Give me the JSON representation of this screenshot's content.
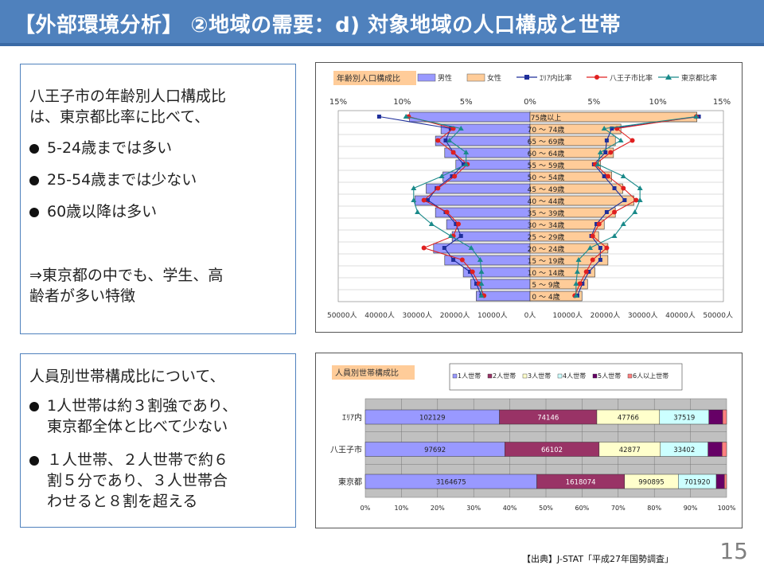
{
  "title": "【外部環境分析】 ②地域の需要：d) 対象地域の人口構成と世帯",
  "box1": {
    "lead1": "八王子市の年齢別人口構成比",
    "lead2": "は、東京都比率に比べて、",
    "bullets": [
      "5-24歳までは多い",
      "25-54歳までは少ない",
      "60歳以降は多い"
    ],
    "conclusion1": "⇒東京都の中でも、学生、高",
    "conclusion2": "齢者が多い特徴"
  },
  "box2": {
    "lead": "人員別世帯構成比について、",
    "bullet1_line1": "1人世帯は約３割強であり、",
    "bullet1_line2": "東京都全体と比べて少ない",
    "bullet2_line1": "１人世帯、２人世帯で約６",
    "bullet2_line2": "割５分であり、３人世帯合",
    "bullet2_line3": "わせると８割を超える"
  },
  "page_number": "15",
  "source": "【出典】J-STAT「平成27年国勢調査」",
  "chart_data": [
    {
      "type": "bar",
      "title": "年齢別人口構成比",
      "legend": [
        "男性",
        "女性",
        "ｴﾘｱ内比率",
        "八王子市比率",
        "東京都比率"
      ],
      "top_axis_ticks": [
        "15%",
        "10%",
        "5%",
        "0%",
        "5%",
        "10%",
        "15%"
      ],
      "bottom_axis_ticks": [
        "50000人",
        "40000人",
        "30000人",
        "20000人",
        "10000人",
        "0人",
        "10000人",
        "20000人",
        "30000人",
        "40000人",
        "50000人"
      ],
      "categories": [
        "75歳以上",
        "70 ～ 74歳",
        "65 ～ 69歳",
        "60 ～ 64歳",
        "55 ～ 59歳",
        "50 ～ 54歳",
        "45 ～ 49歳",
        "40 ～ 44歳",
        "35 ～ 39歳",
        "30 ～ 34歳",
        "25 ～ 29歳",
        "20 ～ 24歳",
        "15 ～ 19歳",
        "10 ～ 14歳",
        "5 ～ 9歳",
        "0 ～ 4歳"
      ],
      "male": [
        32500,
        24000,
        25500,
        23000,
        20000,
        23500,
        28000,
        31000,
        25500,
        22500,
        21000,
        26000,
        23000,
        18000,
        16000,
        14500
      ],
      "female": [
        45000,
        24500,
        23000,
        22500,
        19000,
        22000,
        25000,
        28000,
        23000,
        20000,
        18500,
        21000,
        21000,
        17500,
        15500,
        14000
      ],
      "series": [
        {
          "name": "ｴﾘｱ内比率",
          "color": "#1f2f9a",
          "male": [
            11.8,
            6.2,
            6.6,
            6.0,
            5.2,
            6.1,
            7.3,
            8.0,
            6.6,
            5.8,
            5.4,
            6.7,
            6.0,
            4.7,
            4.2,
            3.8
          ],
          "female": [
            13.2,
            6.4,
            6.0,
            5.9,
            5.0,
            5.8,
            6.6,
            7.4,
            6.0,
            5.2,
            4.8,
            5.5,
            5.5,
            4.6,
            4.1,
            3.7
          ]
        },
        {
          "name": "八王子市比率",
          "color": "#e02020",
          "male": [
            9.5,
            6.0,
            7.2,
            6.0,
            4.9,
            5.9,
            7.2,
            8.3,
            6.5,
            5.6,
            6.0,
            8.3,
            5.3,
            4.5,
            4.0,
            3.6
          ],
          "female": [
            13.0,
            6.8,
            8.0,
            6.3,
            5.1,
            6.1,
            7.3,
            8.3,
            6.6,
            5.4,
            4.9,
            6.0,
            4.9,
            4.4,
            3.9,
            3.5
          ]
        },
        {
          "name": "東京都比率",
          "color": "#1a8a8a",
          "male": [
            9.7,
            5.4,
            6.3,
            5.0,
            5.0,
            6.9,
            9.1,
            9.1,
            8.8,
            7.7,
            6.2,
            4.6,
            3.9,
            3.8,
            3.8,
            3.8
          ],
          "female": [
            13.0,
            5.8,
            7.1,
            5.5,
            5.3,
            7.3,
            8.6,
            8.6,
            8.2,
            7.3,
            6.6,
            4.7,
            3.8,
            3.7,
            3.6,
            3.6
          ]
        }
      ],
      "colors": {
        "male": "#9999ff",
        "female": "#ffcc99"
      }
    },
    {
      "type": "bar",
      "title": "人員別世帯構成比",
      "legend": [
        "1人世帯",
        "2人世帯",
        "3人世帯",
        "4人世帯",
        "5人世帯",
        "6人以上世帯"
      ],
      "categories": [
        "ｴﾘｱ内",
        "八王子市",
        "東京都"
      ],
      "series": [
        {
          "name": "1人世帯",
          "color": "#9999ff",
          "values": [
            102129,
            97692,
            3164675
          ]
        },
        {
          "name": "2人世帯",
          "color": "#993366",
          "values": [
            74146,
            66102,
            1618074
          ]
        },
        {
          "name": "3人世帯",
          "color": "#ffffcc",
          "values": [
            47766,
            42877,
            990895
          ]
        },
        {
          "name": "4人世帯",
          "color": "#ccffff",
          "values": [
            37519,
            33402,
            701920
          ]
        },
        {
          "name": "5人世帯",
          "color": "#660066",
          "values": [
            10500,
            9800,
            150000
          ]
        },
        {
          "name": "6人以上世帯",
          "color": "#ff8080",
          "values": [
            3000,
            3200,
            40000
          ]
        }
      ],
      "x_ticks": [
        "0%",
        "10%",
        "20%",
        "30%",
        "40%",
        "50%",
        "60%",
        "70%",
        "80%",
        "90%",
        "100%"
      ]
    }
  ]
}
